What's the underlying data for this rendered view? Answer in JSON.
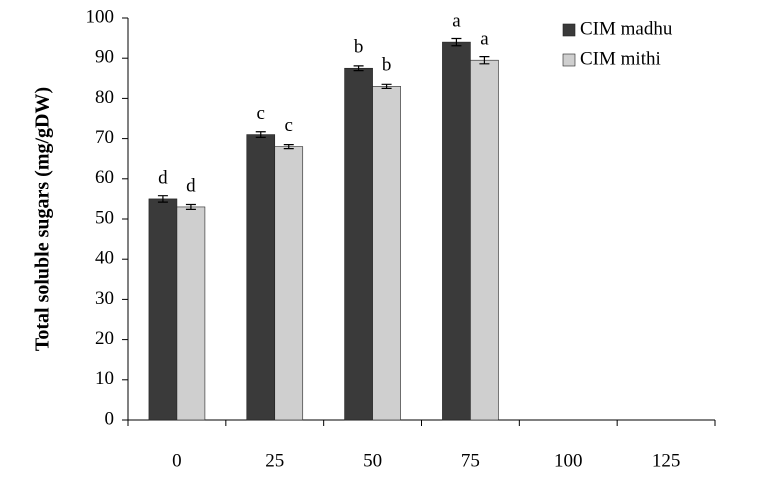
{
  "chart_data": {
    "type": "bar",
    "y_label": "Total soluble sugars (mg/gDW)",
    "categories": [
      "0",
      "25",
      "50",
      "75",
      "100",
      "125"
    ],
    "series": [
      {
        "name": "CIM madhu",
        "color": "#3a3a3a",
        "values": [
          55,
          71,
          87.5,
          94,
          null,
          null
        ],
        "errors": [
          0.8,
          0.7,
          0.6,
          0.9,
          null,
          null
        ],
        "letters": [
          "d",
          "c",
          "b",
          "a",
          null,
          null
        ]
      },
      {
        "name": "CIM mithi",
        "color": "#cfcfcf",
        "values": [
          53,
          68,
          83,
          89.5,
          null,
          null
        ],
        "errors": [
          0.6,
          0.5,
          0.5,
          0.9,
          null,
          null
        ],
        "letters": [
          "d",
          "c",
          "b",
          "a",
          null,
          null
        ]
      }
    ],
    "ylim": [
      0,
      100
    ],
    "yticks": [
      0,
      10,
      20,
      30,
      40,
      50,
      60,
      70,
      80,
      90,
      100
    ],
    "legend": "top-right"
  }
}
